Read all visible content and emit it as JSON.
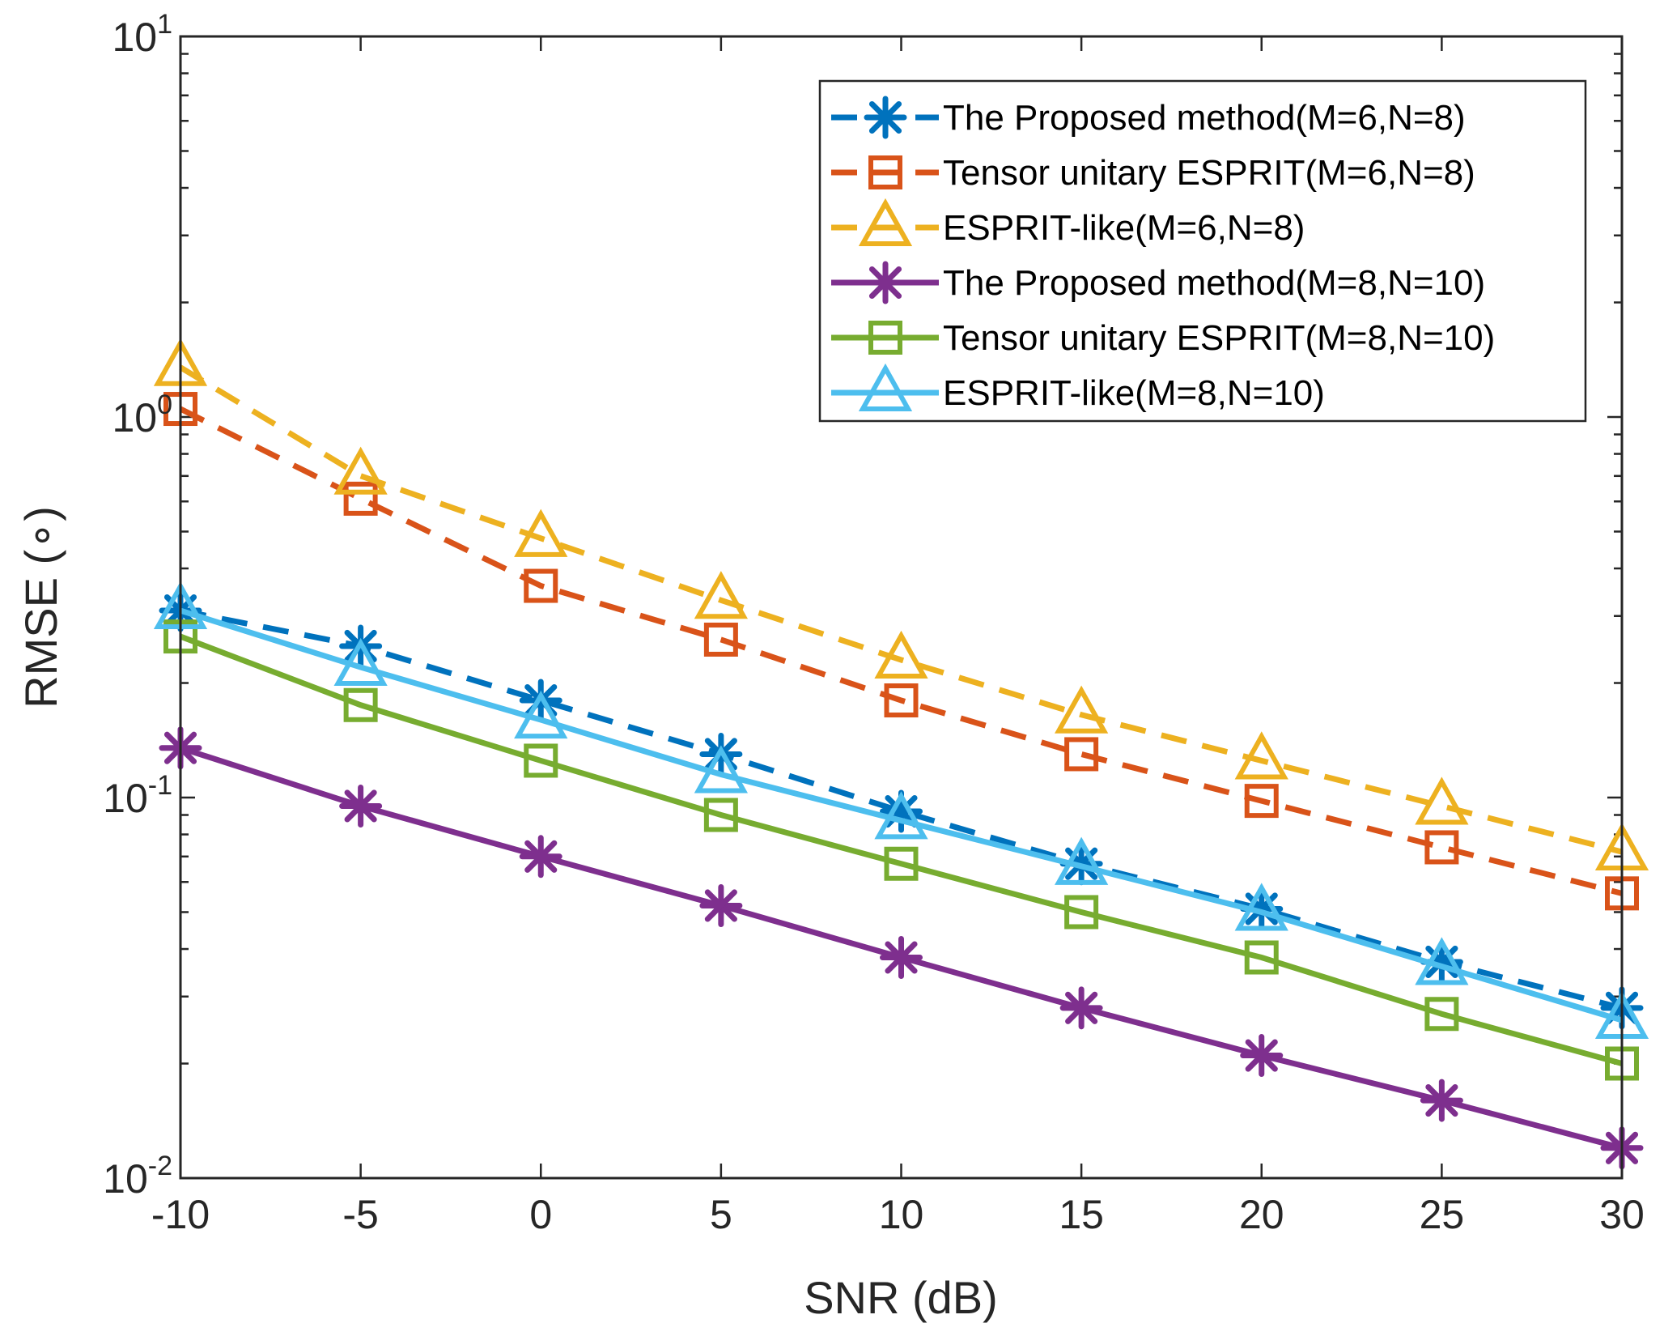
{
  "chart_data": {
    "type": "line",
    "title": "",
    "xlabel": "SNR (dB)",
    "ylabel": "RMSE (∘)",
    "xlim": [
      -10,
      30
    ],
    "ylim": [
      0.01,
      10
    ],
    "yscale": "log",
    "x": [
      -10,
      -5,
      0,
      5,
      10,
      15,
      20,
      25,
      30
    ],
    "x_ticks": [
      "-10",
      "-5",
      "0",
      "5",
      "10",
      "15",
      "20",
      "25",
      "30"
    ],
    "y_ticks": [
      {
        "base": "10",
        "exp": "-2",
        "value": 0.01
      },
      {
        "base": "10",
        "exp": "-1",
        "value": 0.1
      },
      {
        "base": "10",
        "exp": "0",
        "value": 1
      },
      {
        "base": "10",
        "exp": "1",
        "value": 10
      }
    ],
    "legend_position": "top-right",
    "series": [
      {
        "name": "The Proposed method(M=6,N=8)",
        "color": "#0072BD",
        "dash": true,
        "marker": "asterisk",
        "values": [
          0.31,
          0.25,
          0.18,
          0.13,
          0.092,
          0.067,
          0.051,
          0.037,
          0.028
        ]
      },
      {
        "name": "Tensor unitary ESPRIT(M=6,N=8)",
        "color": "#D95319",
        "dash": true,
        "marker": "square",
        "values": [
          1.05,
          0.61,
          0.36,
          0.26,
          0.18,
          0.13,
          0.098,
          0.074,
          0.056
        ]
      },
      {
        "name": "ESPRIT-like(M=6,N=8)",
        "color": "#EDB120",
        "dash": true,
        "marker": "triangle",
        "values": [
          1.35,
          0.7,
          0.48,
          0.33,
          0.23,
          0.165,
          0.125,
          0.095,
          0.072
        ]
      },
      {
        "name": "The Proposed method(M=8,N=10)",
        "color": "#7E2F8E",
        "dash": false,
        "marker": "asterisk",
        "values": [
          0.135,
          0.095,
          0.07,
          0.052,
          0.038,
          0.028,
          0.021,
          0.016,
          0.012
        ]
      },
      {
        "name": "Tensor unitary ESPRIT(M=8,N=10)",
        "color": "#77AC30",
        "dash": false,
        "marker": "square",
        "values": [
          0.265,
          0.175,
          0.125,
          0.09,
          0.067,
          0.05,
          0.038,
          0.027,
          0.02
        ]
      },
      {
        "name": "ESPRIT-like(M=8,N=10)",
        "color": "#4DBEEE",
        "dash": false,
        "marker": "triangle",
        "values": [
          0.31,
          0.22,
          0.16,
          0.115,
          0.087,
          0.066,
          0.05,
          0.036,
          0.026
        ]
      }
    ]
  }
}
